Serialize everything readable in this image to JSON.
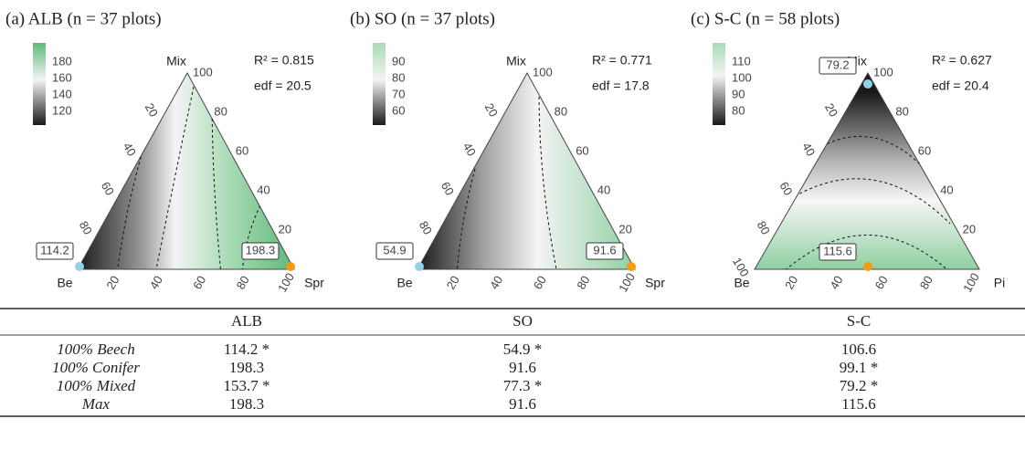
{
  "panels": [
    {
      "title": "(a) ALB (n = 37 plots)",
      "r2": "R² = 0.815",
      "edf": "edf = 20.5",
      "colorbar_ticks": [
        180,
        160,
        140,
        120
      ],
      "vertices": {
        "top": "Mix",
        "left": "Be",
        "right": "Spr"
      },
      "left_ticks": [
        20,
        40,
        60,
        80
      ],
      "right_ticks": [
        100,
        80,
        60,
        40,
        20
      ],
      "bottom_ticks": [
        20,
        40,
        60,
        80,
        100
      ],
      "points": [
        {
          "label": "114.2"
        },
        {
          "label": "198.3"
        }
      ]
    },
    {
      "title": "(b) SO (n = 37 plots)",
      "r2": "R² = 0.771",
      "edf": "edf = 17.8",
      "colorbar_ticks": [
        90,
        80,
        70,
        60
      ],
      "vertices": {
        "top": "Mix",
        "left": "Be",
        "right": "Spr"
      },
      "left_ticks": [
        20,
        40,
        60,
        80
      ],
      "right_ticks": [
        100,
        80,
        60,
        40,
        20
      ],
      "bottom_ticks": [
        20,
        40,
        60,
        80,
        100
      ],
      "points": [
        {
          "label": "54.9"
        },
        {
          "label": "91.6"
        }
      ]
    },
    {
      "title": "(c) S-C (n = 58 plots)",
      "r2": "R² = 0.627",
      "edf": "edf = 20.4",
      "colorbar_ticks": [
        110,
        100,
        90,
        80
      ],
      "vertices": {
        "top": "Mix",
        "left": "Be",
        "right": "Pi"
      },
      "left_ticks": [
        20,
        40,
        60,
        80,
        100
      ],
      "right_ticks": [
        100,
        80,
        60,
        40,
        20
      ],
      "bottom_ticks": [
        20,
        40,
        60,
        80,
        100
      ],
      "points": [
        {
          "label": "79.2"
        },
        {
          "label": "115.6"
        }
      ]
    }
  ],
  "table": {
    "header": [
      "ALB",
      "SO",
      "S-C"
    ],
    "rows": [
      {
        "label": "100% Beech",
        "values": [
          "114.2 *",
          "54.9 *",
          "106.6"
        ]
      },
      {
        "label": "100% Conifer",
        "values": [
          "198.3",
          "91.6",
          "99.1 *"
        ]
      },
      {
        "label": "100% Mixed",
        "values": [
          "153.7 *",
          "77.3 *",
          "79.2 *"
        ]
      },
      {
        "label": "Max",
        "values": [
          "198.3",
          "91.6",
          "115.6"
        ]
      }
    ]
  }
}
